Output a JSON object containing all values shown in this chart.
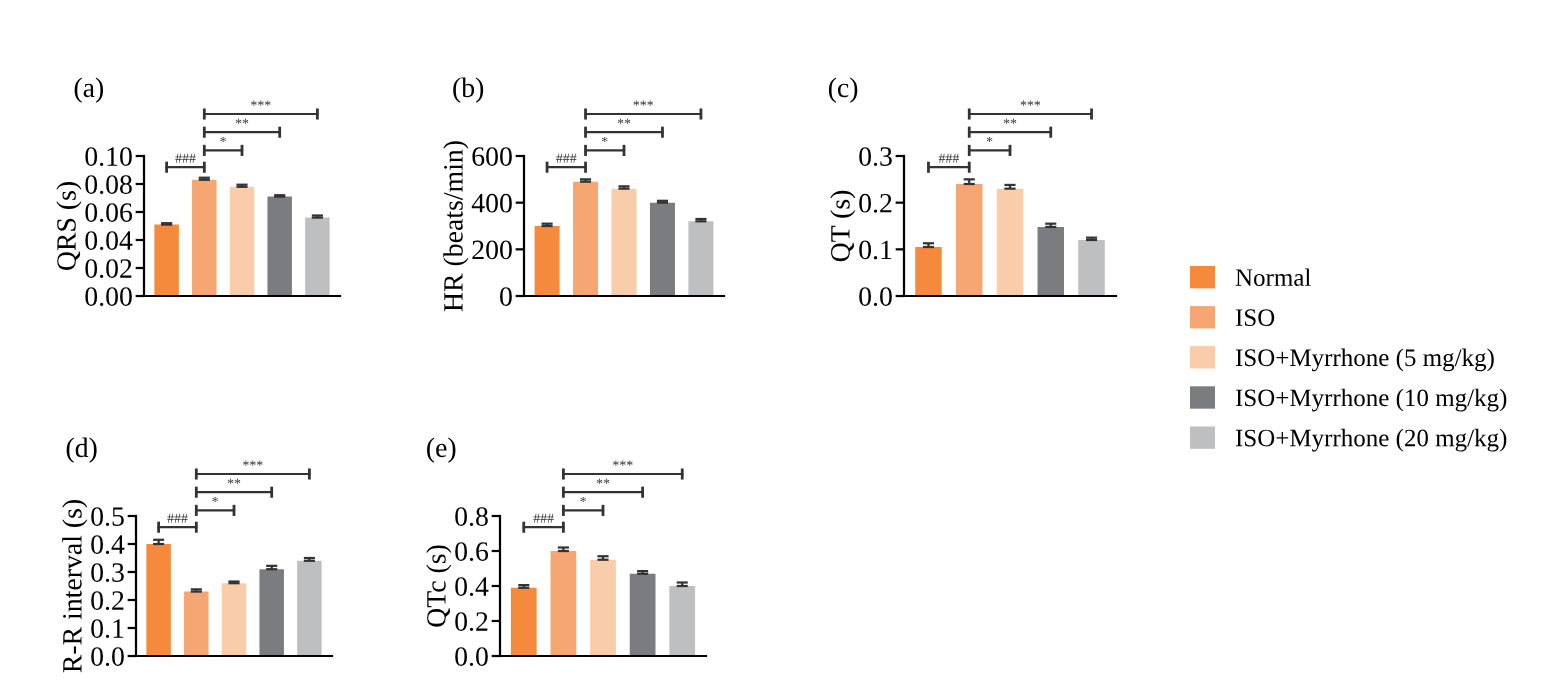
{
  "chart_data": [
    {
      "type": "bar",
      "title": "(a)",
      "ylabel": "QRS (s)",
      "categories": [
        null,
        null,
        null,
        null,
        null
      ],
      "ylim": [
        0,
        0.1
      ],
      "yticks": [
        {
          "value": 0,
          "label": "0.00"
        },
        {
          "value": 0.02,
          "label": "0.02"
        },
        {
          "value": 0.04,
          "label": "0.04"
        },
        {
          "value": 0.06,
          "label": "0.06"
        },
        {
          "value": 0.08,
          "label": "0.08"
        },
        {
          "value": 0.1,
          "label": "0.10"
        }
      ],
      "values": [
        0.051,
        0.083,
        0.078,
        0.071,
        0.056
      ],
      "errors": [
        0.001,
        0.0015,
        0.0015,
        0.001,
        0.0015
      ],
      "colors": [
        "#f58a3c",
        "#f6a673",
        "#f9cda9",
        "#7b7c80",
        "#bebfc1"
      ],
      "annotations": [
        "###",
        "*",
        "**",
        "***"
      ]
    },
    {
      "type": "bar",
      "title": "(b)",
      "ylabel": "HR (beats/min)",
      "categories": [
        null,
        null,
        null,
        null,
        null
      ],
      "ylim": [
        0,
        600
      ],
      "yticks": [
        0,
        200,
        400,
        600
      ],
      "values": [
        300,
        490,
        460,
        400,
        320
      ],
      "errors": [
        10,
        10,
        10,
        8,
        10
      ],
      "colors": [
        "#f58a3c",
        "#f6a673",
        "#f9cda9",
        "#7b7c80",
        "#bebfc1"
      ],
      "annotations": [
        "###",
        "*",
        "**",
        "***"
      ]
    },
    {
      "type": "bar",
      "title": "(c)",
      "ylabel": "QT (s)",
      "categories": [
        null,
        null,
        null,
        null,
        null
      ],
      "ylim": [
        0,
        0.3
      ],
      "yticks": [
        {
          "value": 0,
          "label": "0.0"
        },
        0.1,
        0.2,
        0.3
      ],
      "values": [
        0.105,
        0.24,
        0.23,
        0.148,
        0.12
      ],
      "errors": [
        0.008,
        0.01,
        0.008,
        0.007,
        0.005
      ],
      "colors": [
        "#f58a3c",
        "#f6a673",
        "#f9cda9",
        "#7b7c80",
        "#bebfc1"
      ],
      "annotations": [
        "###",
        "*",
        "**",
        "***"
      ]
    },
    {
      "type": "bar",
      "title": "(d)",
      "ylabel": "R-R interval (s)",
      "categories": [
        null,
        null,
        null,
        null,
        null
      ],
      "ylim": [
        0,
        0.5
      ],
      "yticks": [
        {
          "value": 0,
          "label": "0.0"
        },
        0.1,
        0.2,
        0.3,
        0.4,
        0.5
      ],
      "values": [
        0.4,
        0.23,
        0.26,
        0.31,
        0.34
      ],
      "errors": [
        0.015,
        0.008,
        0.006,
        0.012,
        0.01
      ],
      "colors": [
        "#f58a3c",
        "#f6a673",
        "#f9cda9",
        "#7b7c80",
        "#bebfc1"
      ],
      "annotations": [
        "###",
        "*",
        "**",
        "***"
      ]
    },
    {
      "type": "bar",
      "title": "(e)",
      "ylabel": "QTc (s)",
      "categories": [
        null,
        null,
        null,
        null,
        null
      ],
      "ylim": [
        0,
        0.8
      ],
      "yticks": [
        {
          "value": 0,
          "label": "0.0"
        },
        0.2,
        0.4,
        0.6,
        0.8
      ],
      "values": [
        0.39,
        0.6,
        0.55,
        0.47,
        0.4
      ],
      "errors": [
        0.015,
        0.02,
        0.02,
        0.015,
        0.02
      ],
      "colors": [
        "#f58a3c",
        "#f6a673",
        "#f9cda9",
        "#7b7c80",
        "#bebfc1"
      ],
      "annotations": [
        "###",
        "*",
        "**",
        "***"
      ]
    },
    {
      "type": "other",
      "legend": "right",
      "series": [
        {
          "name": "Normal",
          "color": "#f58a3c"
        },
        {
          "name": "ISO",
          "color": "#f6a673"
        },
        {
          "name": "ISO+Myrrhone (5 mg/kg)",
          "color": "#f9cda9"
        },
        {
          "name": "ISO+Myrrhone (10 mg/kg)",
          "color": "#7b7c80"
        },
        {
          "name": "ISO+Myrrhone (20 mg/kg)",
          "color": "#bebfc1"
        }
      ]
    }
  ]
}
